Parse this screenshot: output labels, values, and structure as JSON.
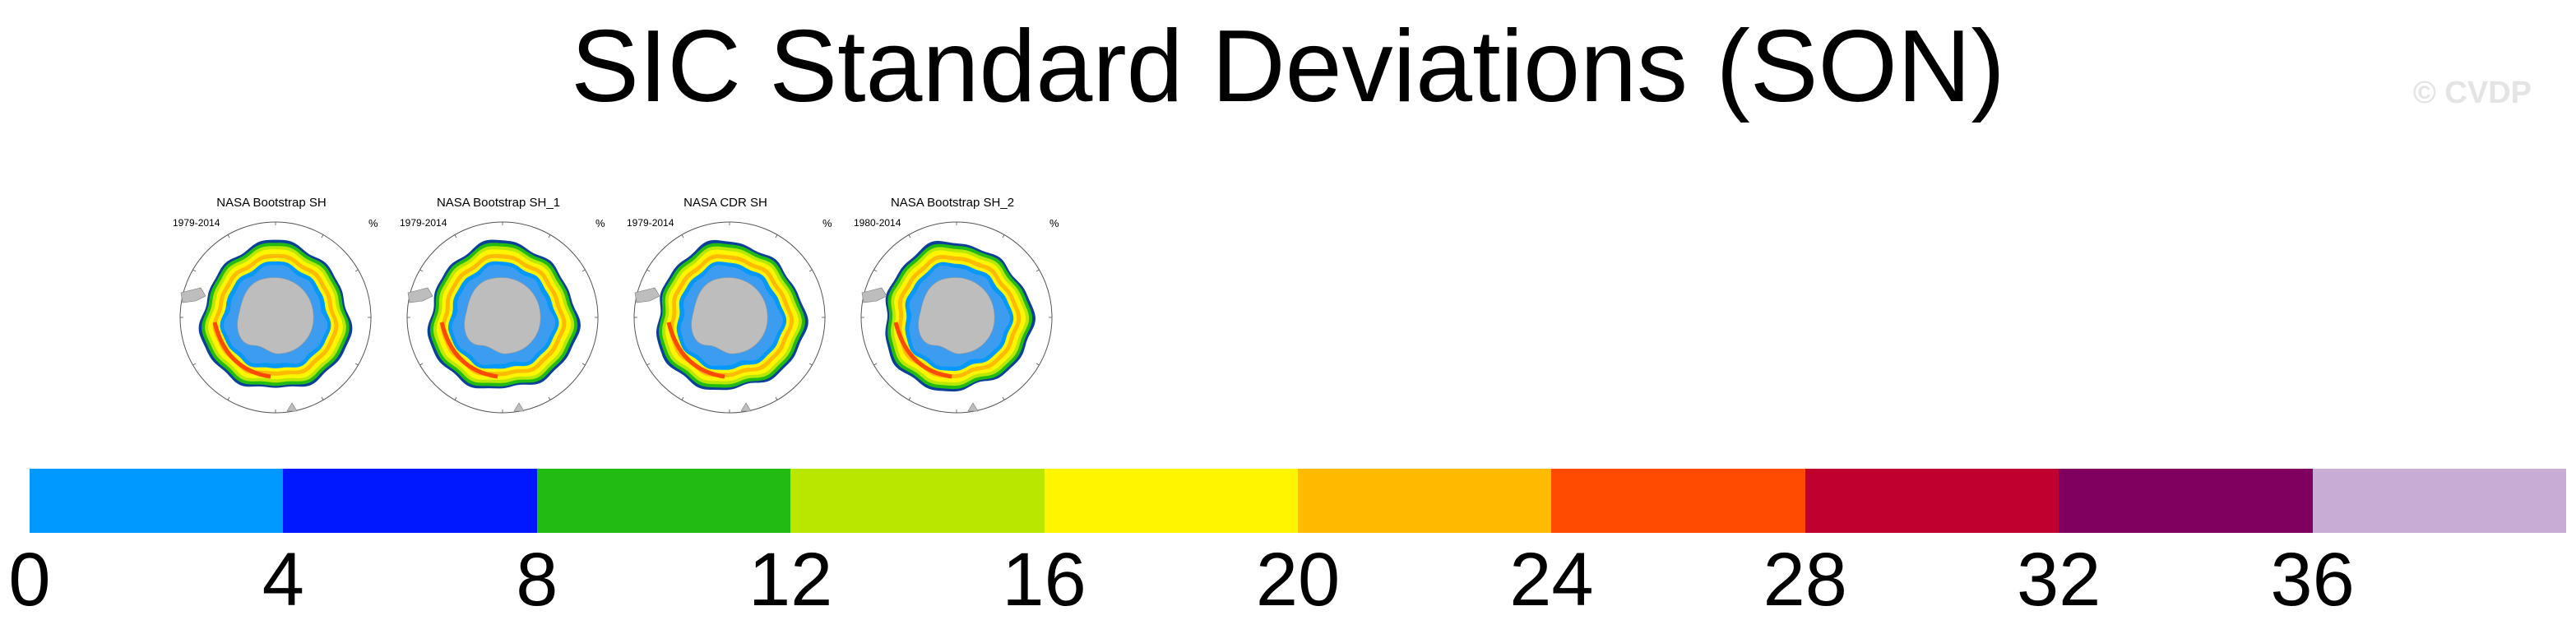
{
  "title": "SIC Standard Deviations (SON)",
  "watermark": "© CVDP",
  "panels": [
    {
      "title": "NASA Bootstrap SH",
      "years": "1979-2014",
      "unit": "%"
    },
    {
      "title": "NASA Bootstrap SH_1",
      "years": "1979-2014",
      "unit": "%"
    },
    {
      "title": "NASA CDR SH",
      "years": "1979-2014",
      "unit": "%"
    },
    {
      "title": "NASA Bootstrap SH_2",
      "years": "1980-2014",
      "unit": "%"
    }
  ],
  "colorbar": {
    "ticks": [
      "0",
      "4",
      "8",
      "12",
      "16",
      "20",
      "24",
      "28",
      "32",
      "36"
    ],
    "colors": [
      "#0099ff",
      "#0018ff",
      "#22bb11",
      "#b8e800",
      "#fff500",
      "#ffbb00",
      "#ff4a00",
      "#c0002e",
      "#800060",
      "#c8acd6"
    ]
  },
  "map_colors": {
    "ocean": "#ffffff",
    "land": "#bdbdbd",
    "low_variability": "#3c9cf0"
  }
}
